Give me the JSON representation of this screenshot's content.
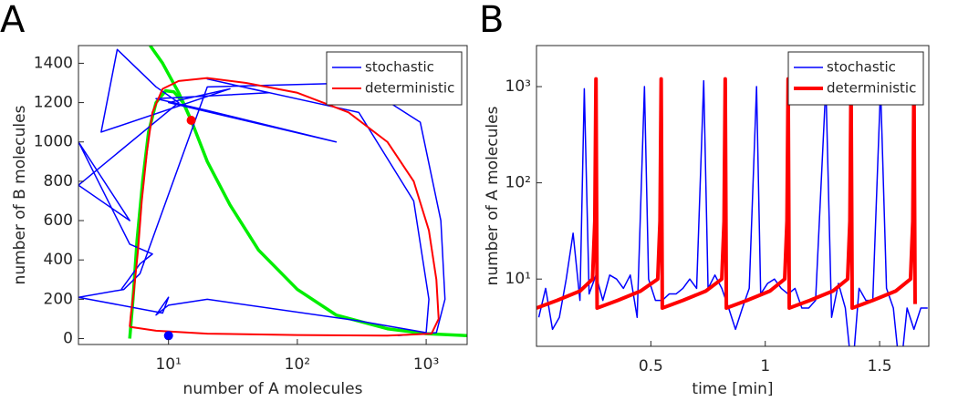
{
  "chart_data": [
    {
      "type": "line",
      "panel_label": "A",
      "xlabel": "number of A molecules",
      "ylabel": "number of B molecules",
      "xscale": "log",
      "xlim": [
        2,
        2080
      ],
      "ylim": [
        -30,
        1490
      ],
      "xticks": [
        {
          "value": 10,
          "label": "10¹"
        },
        {
          "value": 100,
          "label": "10²"
        },
        {
          "value": 1000,
          "label": "10³"
        }
      ],
      "yticks": [
        0,
        200,
        400,
        600,
        800,
        1000,
        1200,
        1400
      ],
      "legend": "northeast",
      "series": [
        {
          "name": "stochastic",
          "color": "#0000ff",
          "x": [
            4.3,
            6,
            7.5,
            5,
            2,
            5,
            2,
            12,
            8,
            4,
            3,
            30,
            10,
            200,
            20,
            8,
            60,
            20,
            300,
            800,
            1050,
            1000,
            300,
            20,
            10,
            8,
            10,
            9,
            2,
            4.5,
            6,
            20,
            300,
            900,
            1300,
            1400,
            1200,
            600
          ],
          "values": [
            250,
            380,
            430,
            480,
            1000,
            600,
            780,
            1200,
            1280,
            1470,
            1050,
            1270,
            1200,
            1000,
            1160,
            1220,
            1250,
            1320,
            1150,
            700,
            200,
            30,
            90,
            200,
            170,
            120,
            210,
            130,
            210,
            250,
            330,
            1280,
            1300,
            1100,
            600,
            200,
            30,
            15
          ]
        },
        {
          "name": "deterministic",
          "color": "#ff0000",
          "x": [
            5,
            8,
            20,
            100,
            500,
            1100,
            1250,
            1200,
            1050,
            800,
            500,
            250,
            100,
            40,
            20,
            12,
            9,
            7.5,
            6.8,
            6.2,
            5.8,
            5.4,
            5.1,
            5
          ],
          "values": [
            60,
            40,
            25,
            18,
            15,
            25,
            100,
            300,
            550,
            800,
            1000,
            1150,
            1250,
            1300,
            1325,
            1310,
            1270,
            1150,
            950,
            700,
            450,
            250,
            120,
            60
          ]
        }
      ],
      "curves": [
        {
          "color": "#00ee00",
          "x": [
            5,
            5.3,
            5.7,
            6.3,
            7,
            8,
            9.5,
            11,
            13,
            15
          ],
          "values": [
            0,
            200,
            500,
            800,
            1050,
            1200,
            1260,
            1255,
            1200,
            1110
          ]
        },
        {
          "color": "#00ee00",
          "x": [
            7.2,
            9,
            12,
            15,
            20,
            30,
            50,
            100,
            200,
            500,
            1000,
            2080
          ],
          "values": [
            1490,
            1400,
            1250,
            1110,
            900,
            680,
            450,
            250,
            120,
            50,
            25,
            15
          ]
        }
      ],
      "points": [
        {
          "color": "#ff0000",
          "x": 15,
          "y": 1110
        },
        {
          "color": "#0000ff",
          "x": 10,
          "y": 15
        }
      ]
    },
    {
      "type": "line",
      "panel_label": "B",
      "xlabel": "time [min]",
      "ylabel": "number of A molecules",
      "yscale": "log",
      "xlim": [
        0,
        1.715
      ],
      "ylim": [
        2,
        2670
      ],
      "xticks": [
        0.5,
        1,
        1.5
      ],
      "yticks": [
        {
          "value": 10,
          "label": "10¹"
        },
        {
          "value": 100,
          "label": "10²"
        },
        {
          "value": 1000,
          "label": "10³"
        }
      ],
      "legend": "northeast",
      "series": [
        {
          "name": "stochastic",
          "color": "#0000ff",
          "x": [
            0.01,
            0.04,
            0.07,
            0.1,
            0.13,
            0.16,
            0.19,
            0.209,
            0.23,
            0.26,
            0.29,
            0.32,
            0.35,
            0.38,
            0.41,
            0.44,
            0.472,
            0.49,
            0.52,
            0.55,
            0.58,
            0.61,
            0.64,
            0.67,
            0.7,
            0.731,
            0.75,
            0.78,
            0.81,
            0.84,
            0.87,
            0.9,
            0.93,
            0.962,
            0.98,
            1.01,
            1.04,
            1.07,
            1.1,
            1.13,
            1.16,
            1.19,
            1.22,
            1.265,
            1.29,
            1.32,
            1.35,
            1.38,
            1.41,
            1.44,
            1.47,
            1.504,
            1.53,
            1.56,
            1.59,
            1.62,
            1.65,
            1.68,
            1.71
          ],
          "values": [
            4,
            8,
            3,
            4,
            10,
            30,
            6,
            950,
            7,
            11,
            6,
            11,
            10,
            8,
            11,
            4,
            1000,
            10,
            6,
            6,
            7,
            7,
            8,
            10,
            8,
            1150,
            8,
            11,
            8,
            5,
            3,
            5,
            8,
            1000,
            7,
            9,
            10,
            8,
            7,
            8,
            5,
            5,
            6,
            1050,
            4,
            9,
            5,
            1,
            8,
            6,
            6,
            1000,
            8,
            5,
            1,
            5,
            3,
            5,
            5
          ]
        },
        {
          "name": "deterministic",
          "color": "#ff0000",
          "x": [
            0,
            0.09,
            0.19,
            0.245,
            0.255,
            0.26,
            0.265,
            0.355,
            0.455,
            0.53,
            0.54,
            0.545,
            0.55,
            0.64,
            0.74,
            0.81,
            0.82,
            0.825,
            0.83,
            0.92,
            1.02,
            1.085,
            1.095,
            1.1,
            1.105,
            1.195,
            1.295,
            1.36,
            1.37,
            1.375,
            1.38,
            1.47,
            1.57,
            1.635,
            1.645,
            1.65,
            1.655
          ],
          "values": [
            5,
            6,
            7.5,
            10,
            40,
            1200,
            5,
            6,
            7.5,
            10,
            40,
            1200,
            5,
            6,
            7.5,
            10,
            40,
            1200,
            5,
            6,
            7.5,
            10,
            40,
            1200,
            5,
            6,
            7.5,
            10,
            40,
            1200,
            5,
            6,
            7.5,
            10,
            40,
            1200,
            5.5
          ]
        }
      ]
    }
  ]
}
